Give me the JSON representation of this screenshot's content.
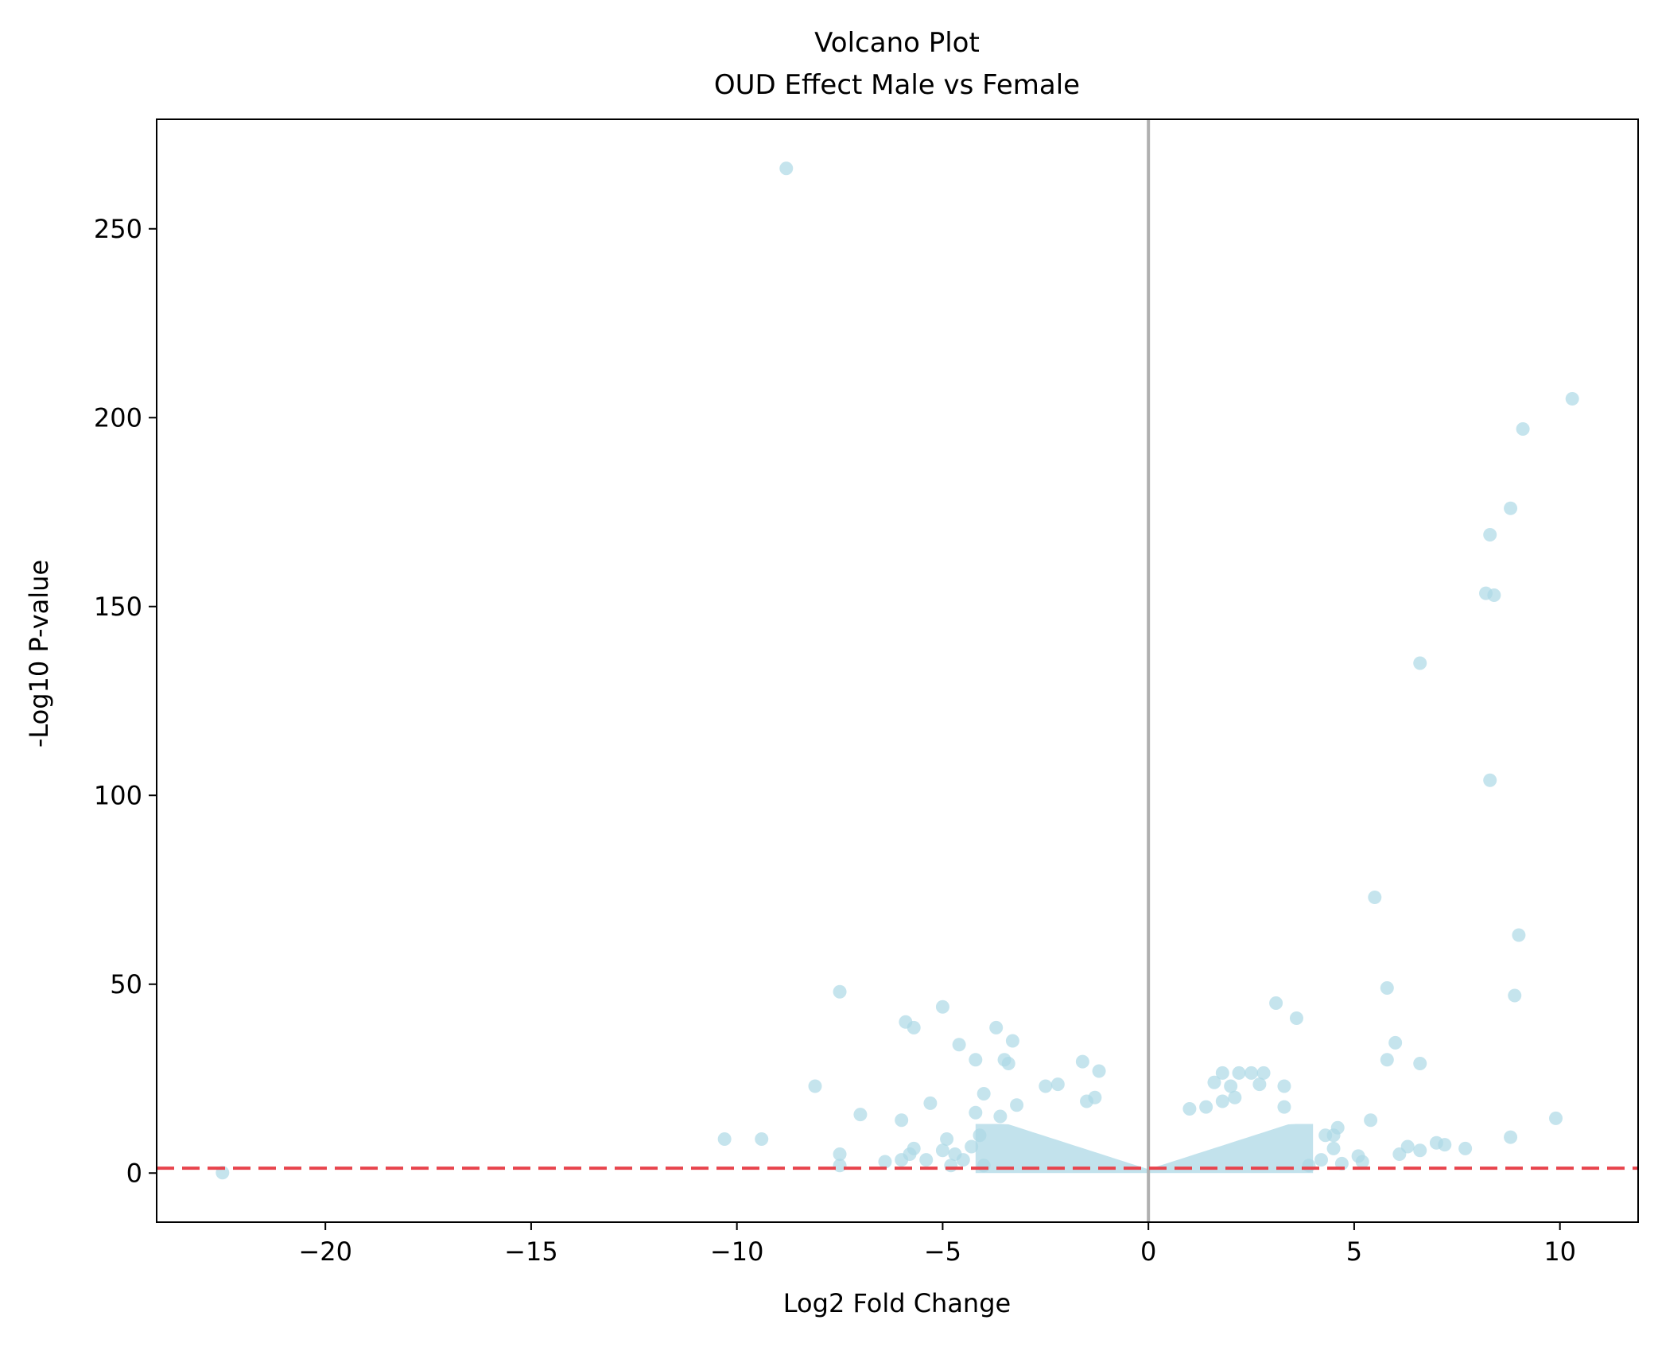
{
  "chart_data": {
    "type": "scatter",
    "title": "Volcano Plot",
    "subtitle": "OUD Effect Male vs Female",
    "xlabel": "Log2 Fold Change",
    "ylabel": "-Log10 P-value",
    "xlim": [
      -24.1,
      11.9
    ],
    "ylim": [
      -13,
      279
    ],
    "xticks": [
      -20,
      -15,
      -10,
      -5,
      0,
      5,
      10
    ],
    "xtick_labels": [
      "−20",
      "−15",
      "−10",
      "−5",
      "0",
      "5",
      "10"
    ],
    "yticks": [
      0,
      50,
      100,
      150,
      200,
      250
    ],
    "ytick_labels": [
      "0",
      "50",
      "100",
      "150",
      "200",
      "250"
    ],
    "grid": false,
    "point_color": "#add8e6",
    "threshold_line": {
      "axis": "y",
      "value": 1.3,
      "style": "dashed",
      "color": "#e8434c"
    },
    "zero_line": {
      "axis": "x",
      "value": 0,
      "color": "#b0b0b0"
    },
    "points": [
      {
        "x": -22.5,
        "y": 0.1
      },
      {
        "x": -8.8,
        "y": 266
      },
      {
        "x": 10.3,
        "y": 205
      },
      {
        "x": 9.1,
        "y": 197
      },
      {
        "x": 8.8,
        "y": 176
      },
      {
        "x": 8.3,
        "y": 169
      },
      {
        "x": 8.2,
        "y": 153.5
      },
      {
        "x": 8.4,
        "y": 153
      },
      {
        "x": 6.6,
        "y": 135
      },
      {
        "x": 8.3,
        "y": 104
      },
      {
        "x": 5.5,
        "y": 73
      },
      {
        "x": 9.0,
        "y": 63
      },
      {
        "x": 5.8,
        "y": 49
      },
      {
        "x": 8.9,
        "y": 47
      },
      {
        "x": 3.1,
        "y": 45
      },
      {
        "x": 3.6,
        "y": 41
      },
      {
        "x": 6.0,
        "y": 34.5
      },
      {
        "x": 5.8,
        "y": 30
      },
      {
        "x": 6.6,
        "y": 29
      },
      {
        "x": 9.9,
        "y": 14.5
      },
      {
        "x": 8.8,
        "y": 9.5
      },
      {
        "x": 7.7,
        "y": 6.5
      },
      {
        "x": 7.2,
        "y": 7.5
      },
      {
        "x": 7.0,
        "y": 8
      },
      {
        "x": 6.6,
        "y": 6
      },
      {
        "x": 6.3,
        "y": 7
      },
      {
        "x": 6.1,
        "y": 5
      },
      {
        "x": 5.4,
        "y": 14
      },
      {
        "x": 5.1,
        "y": 4.5
      },
      {
        "x": 4.6,
        "y": 12
      },
      {
        "x": 4.5,
        "y": 6.5
      },
      {
        "x": 4.3,
        "y": 10
      },
      {
        "x": 4.5,
        "y": 10
      },
      {
        "x": 3.3,
        "y": 23
      },
      {
        "x": 3.3,
        "y": 17.5
      },
      {
        "x": 2.8,
        "y": 26.5
      },
      {
        "x": 2.5,
        "y": 26.5
      },
      {
        "x": 2.2,
        "y": 26.5
      },
      {
        "x": 1.8,
        "y": 26.5
      },
      {
        "x": 2.7,
        "y": 23.5
      },
      {
        "x": 2.0,
        "y": 23
      },
      {
        "x": 1.6,
        "y": 24
      },
      {
        "x": 1.0,
        "y": 17
      },
      {
        "x": 1.4,
        "y": 17.5
      },
      {
        "x": 2.1,
        "y": 20
      },
      {
        "x": 1.8,
        "y": 19
      },
      {
        "x": -7.5,
        "y": 48
      },
      {
        "x": -5.0,
        "y": 44
      },
      {
        "x": -5.9,
        "y": 40
      },
      {
        "x": -5.7,
        "y": 38.5
      },
      {
        "x": -3.7,
        "y": 38.5
      },
      {
        "x": -3.3,
        "y": 35
      },
      {
        "x": -4.6,
        "y": 34
      },
      {
        "x": -3.5,
        "y": 30
      },
      {
        "x": -4.2,
        "y": 30
      },
      {
        "x": -3.4,
        "y": 29
      },
      {
        "x": -1.6,
        "y": 29.5
      },
      {
        "x": -1.2,
        "y": 27
      },
      {
        "x": -2.2,
        "y": 23.5
      },
      {
        "x": -2.5,
        "y": 23
      },
      {
        "x": -8.1,
        "y": 23
      },
      {
        "x": -4.0,
        "y": 21
      },
      {
        "x": -1.3,
        "y": 20
      },
      {
        "x": -1.5,
        "y": 19
      },
      {
        "x": -5.3,
        "y": 18.5
      },
      {
        "x": -3.2,
        "y": 18
      },
      {
        "x": -4.2,
        "y": 16
      },
      {
        "x": -7.0,
        "y": 15.5
      },
      {
        "x": -6.0,
        "y": 14
      },
      {
        "x": -3.6,
        "y": 15
      },
      {
        "x": -10.3,
        "y": 9
      },
      {
        "x": -9.4,
        "y": 9
      },
      {
        "x": -7.5,
        "y": 5
      },
      {
        "x": -7.5,
        "y": 2
      },
      {
        "x": -6.4,
        "y": 3
      },
      {
        "x": -6.0,
        "y": 3.5
      },
      {
        "x": -5.7,
        "y": 6.5
      },
      {
        "x": -5.8,
        "y": 5
      },
      {
        "x": -5.4,
        "y": 3.5
      },
      {
        "x": -5.0,
        "y": 6
      },
      {
        "x": -4.9,
        "y": 9
      },
      {
        "x": -4.7,
        "y": 5
      },
      {
        "x": -4.5,
        "y": 3.5
      },
      {
        "x": -4.8,
        "y": 2
      },
      {
        "x": -4.3,
        "y": 7
      },
      {
        "x": -4.1,
        "y": 10
      },
      {
        "x": -4.0,
        "y": 2
      },
      {
        "x": 3.9,
        "y": 2
      },
      {
        "x": 4.2,
        "y": 3.5
      },
      {
        "x": 4.7,
        "y": 2.5
      },
      {
        "x": 5.2,
        "y": 3
      }
    ]
  }
}
